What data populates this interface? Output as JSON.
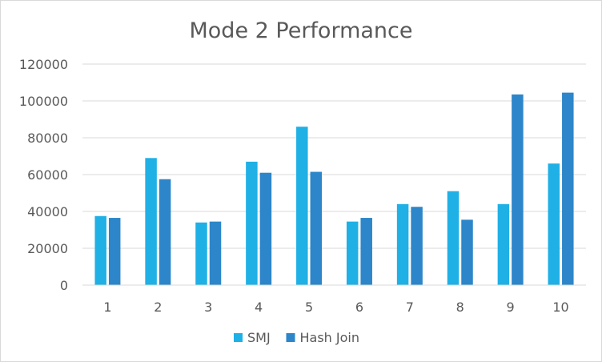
{
  "chart_data": {
    "type": "bar",
    "title": "Mode 2 Performance",
    "xlabel": "",
    "ylabel": "",
    "categories": [
      "1",
      "2",
      "3",
      "4",
      "5",
      "6",
      "7",
      "8",
      "9",
      "10"
    ],
    "series": [
      {
        "name": "SMJ",
        "color": "#1fb0e6",
        "values": [
          37500,
          69000,
          34000,
          67000,
          86000,
          34500,
          44000,
          51000,
          44000,
          66000
        ]
      },
      {
        "name": "Hash Join",
        "color": "#2c86c9",
        "values": [
          36500,
          57500,
          34500,
          61000,
          61500,
          36500,
          42500,
          35500,
          103500,
          104500
        ]
      }
    ],
    "ylim": [
      0,
      120000
    ],
    "yticks": [
      "0",
      "20000",
      "40000",
      "60000",
      "80000",
      "100000",
      "120000"
    ],
    "grid": true,
    "legend_position": "bottom"
  }
}
